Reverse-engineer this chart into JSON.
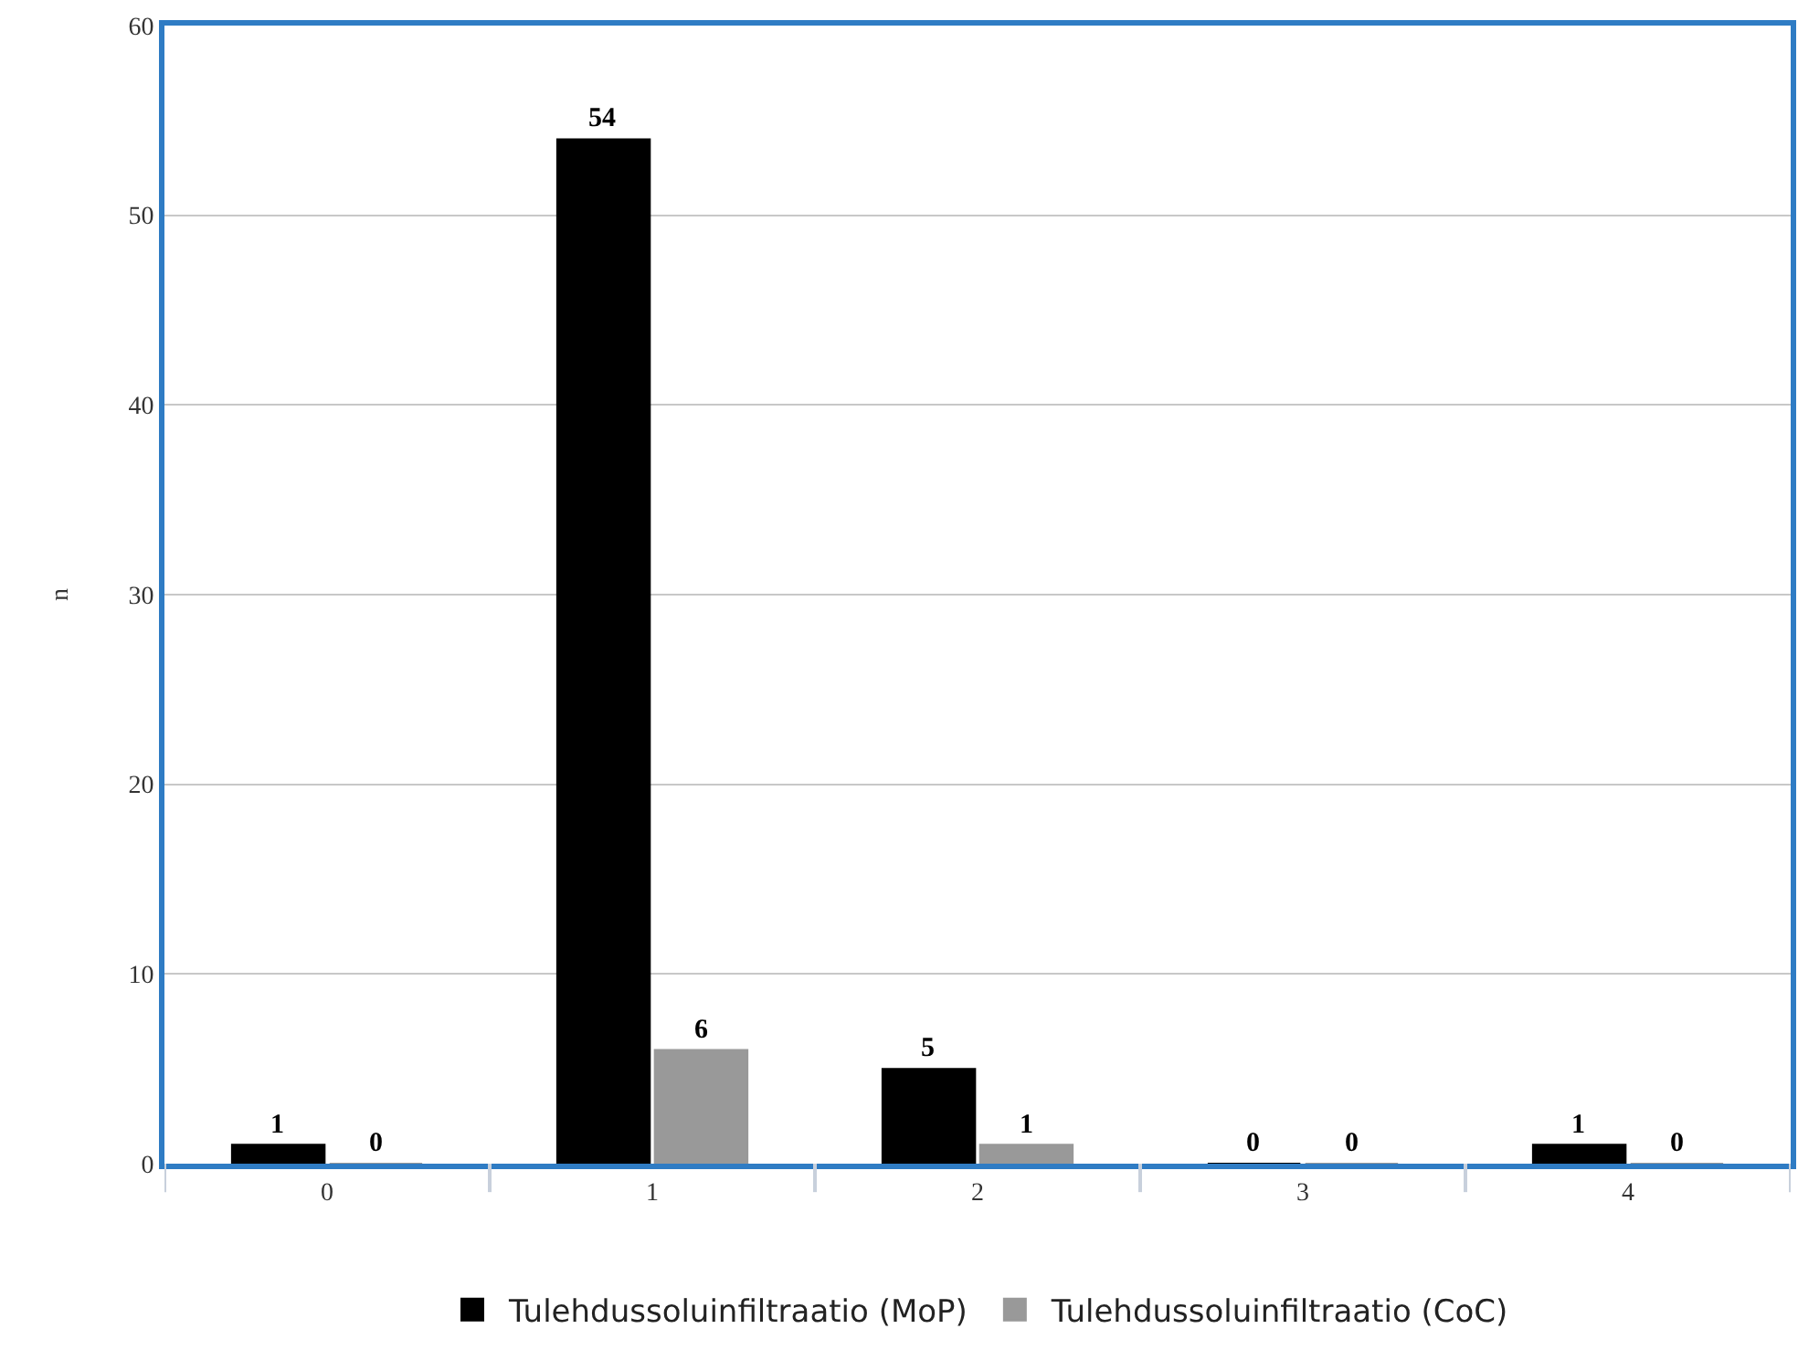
{
  "chart_data": {
    "type": "bar",
    "ylabel": "n",
    "categories": [
      "0",
      "1",
      "2",
      "3",
      "4"
    ],
    "series": [
      {
        "name": "Tulehdussoluinfiltraatio (MoP)",
        "color": "#000000",
        "values": [
          1,
          54,
          5,
          0,
          1
        ]
      },
      {
        "name": "Tulehdussoluinfiltraatio (CoC)",
        "color": "#999999",
        "values": [
          0,
          6,
          1,
          0,
          0
        ]
      }
    ],
    "ylim": [
      0,
      60
    ],
    "yticks": [
      0,
      10,
      20,
      30,
      40,
      50,
      60
    ],
    "grid": "y",
    "legend": "bottom",
    "data_labels": true
  }
}
